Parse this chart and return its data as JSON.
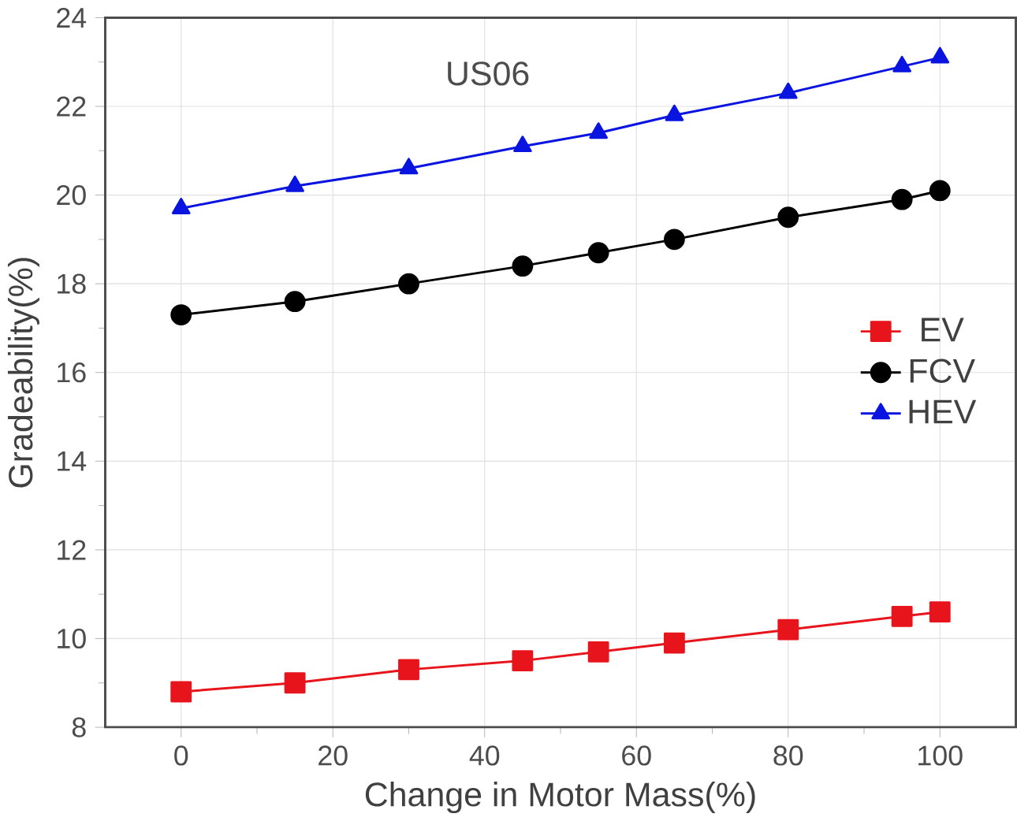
{
  "chart_data": {
    "type": "line",
    "title": "US06",
    "xlabel": "Change in Motor Mass(%)",
    "ylabel": "Gradeability(%)",
    "x": [
      0,
      15,
      30,
      45,
      55,
      65,
      80,
      95,
      100
    ],
    "series": [
      {
        "name": "EV",
        "color": "#e8141c",
        "marker": "square",
        "values": [
          8.8,
          9.0,
          9.3,
          9.5,
          9.7,
          9.9,
          10.2,
          10.5,
          10.6
        ]
      },
      {
        "name": "FCV",
        "color": "#000000",
        "marker": "circle",
        "values": [
          17.3,
          17.6,
          18.0,
          18.4,
          18.7,
          19.0,
          19.5,
          19.9,
          20.1
        ]
      },
      {
        "name": "HEV",
        "color": "#0a14e0",
        "marker": "triangle",
        "values": [
          19.7,
          20.2,
          20.6,
          21.1,
          21.4,
          21.8,
          22.3,
          22.9,
          23.1
        ]
      }
    ],
    "xlim": [
      -10,
      110
    ],
    "ylim": [
      8,
      24
    ],
    "xticks": [
      0,
      20,
      40,
      60,
      80,
      100
    ],
    "yticks": [
      8,
      10,
      12,
      14,
      16,
      18,
      20,
      22,
      24
    ],
    "grid": true,
    "legend": "right",
    "line_style": "solid"
  }
}
